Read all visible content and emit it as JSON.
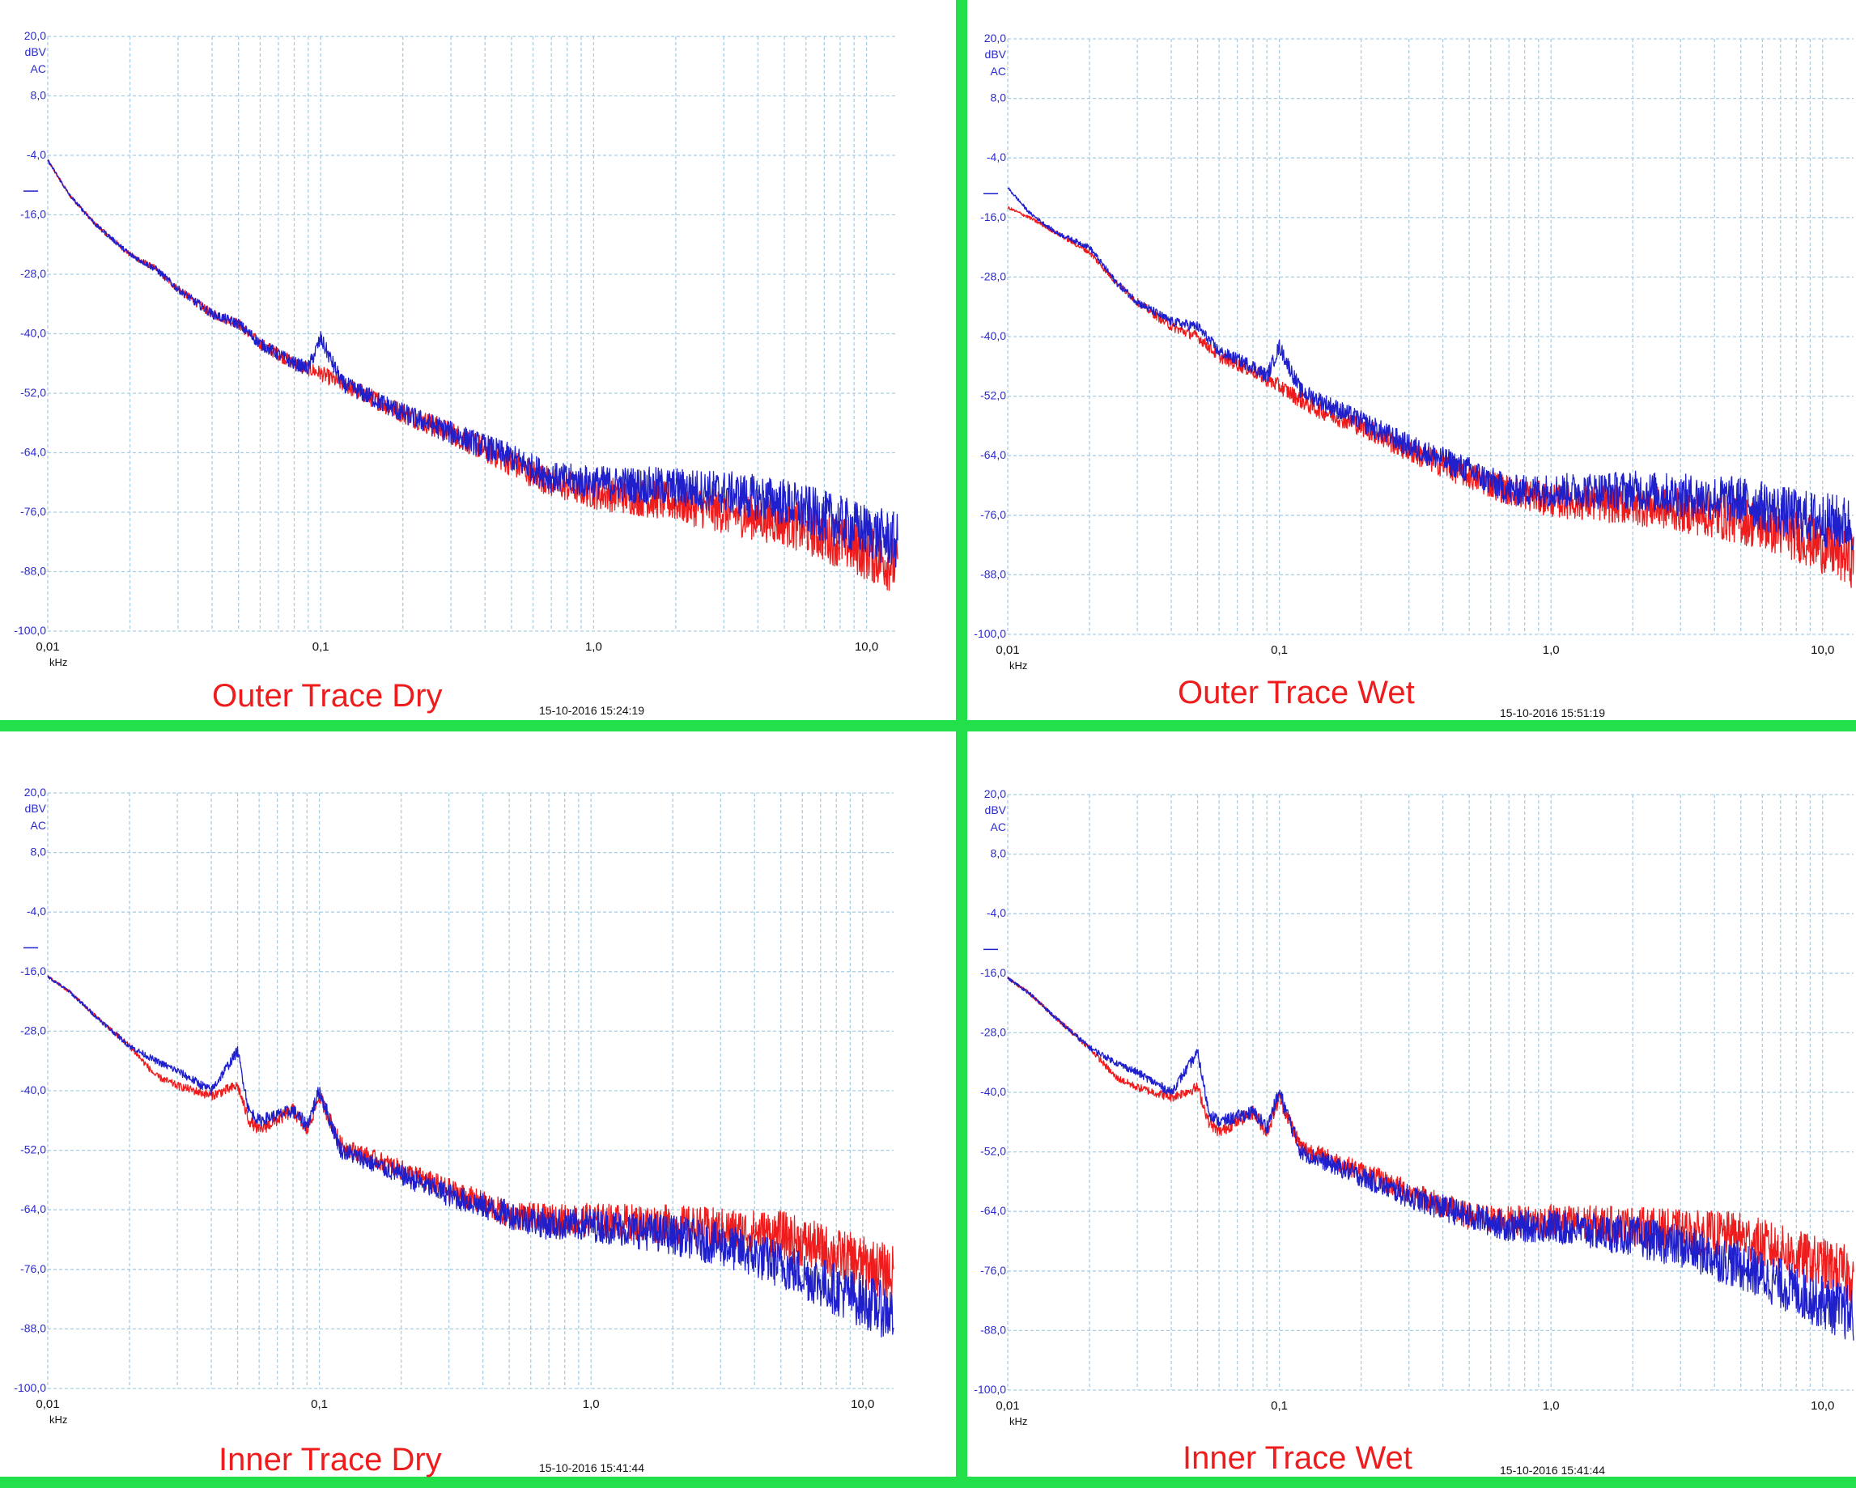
{
  "colors": {
    "divider": "#22e04a",
    "grid": "#a9cde3",
    "series_red": "#ee1c1c",
    "series_blue": "#1f1fcc",
    "axis_text": "#2a2ad0",
    "title": "#ee1c1c"
  },
  "chart_data": [
    {
      "type": "line",
      "title": "Outer Trace Dry",
      "timestamp": "15-10-2016 15:24:19",
      "y_unit_lines": [
        "dBV",
        "AC"
      ],
      "x_unit": "kHz",
      "xscale": "log",
      "xlim": [
        0.01,
        13
      ],
      "ylim": [
        -100,
        20
      ],
      "yticks": [
        "20,0",
        "8,0",
        "-4,0",
        "-16,0",
        "-28,0",
        "-40,0",
        "-52,0",
        "-64,0",
        "-76,0",
        "-88,0",
        "-100,0"
      ],
      "xticks": [
        "0,01",
        "0,1",
        "1,0",
        "10,0"
      ],
      "grid": true,
      "series": [
        {
          "color": "#ee1c1c",
          "x": [
            0.01,
            0.012,
            0.015,
            0.02,
            0.025,
            0.03,
            0.04,
            0.05,
            0.06,
            0.08,
            0.1,
            0.13,
            0.2,
            0.3,
            0.5,
            0.7,
            1.0,
            2.0,
            3.0,
            5.0,
            8.0,
            13.0
          ],
          "y": [
            -5,
            -12,
            -18,
            -24,
            -27,
            -31,
            -36,
            -38,
            -42,
            -46,
            -48,
            -51,
            -56,
            -60,
            -66,
            -70,
            -72,
            -74,
            -76,
            -78,
            -82,
            -87
          ]
        },
        {
          "color": "#1f1fcc",
          "x": [
            0.01,
            0.012,
            0.015,
            0.02,
            0.025,
            0.03,
            0.04,
            0.05,
            0.06,
            0.08,
            0.09,
            0.1,
            0.12,
            0.2,
            0.3,
            0.5,
            0.7,
            1.0,
            2.0,
            3.0,
            5.0,
            8.0,
            13.0
          ],
          "y": [
            -5,
            -12,
            -18,
            -24,
            -27,
            -31,
            -36,
            -38,
            -42,
            -46,
            -47,
            -41,
            -50,
            -56,
            -60,
            -65,
            -69,
            -70,
            -71,
            -72,
            -74,
            -78,
            -82
          ]
        }
      ]
    },
    {
      "type": "line",
      "title": "Outer Trace Wet",
      "timestamp": "15-10-2016 15:51:19",
      "y_unit_lines": [
        "dBV",
        "AC"
      ],
      "x_unit": "kHz",
      "xscale": "log",
      "xlim": [
        0.01,
        13
      ],
      "ylim": [
        -100,
        20
      ],
      "yticks": [
        "20,0",
        "8,0",
        "-4,0",
        "-16,0",
        "-28,0",
        "-40,0",
        "-52,0",
        "-64,0",
        "-76,0",
        "-88,0",
        "-100,0"
      ],
      "xticks": [
        "0,01",
        "0,1",
        "1,0",
        "10,0"
      ],
      "grid": true,
      "series": [
        {
          "color": "#ee1c1c",
          "x": [
            0.01,
            0.012,
            0.015,
            0.02,
            0.025,
            0.03,
            0.04,
            0.05,
            0.06,
            0.08,
            0.1,
            0.13,
            0.2,
            0.3,
            0.5,
            0.7,
            1.0,
            2.0,
            3.0,
            5.0,
            8.0,
            13.0
          ],
          "y": [
            -14,
            -16,
            -19,
            -23,
            -29,
            -33,
            -38,
            -40,
            -44,
            -47,
            -50,
            -54,
            -58,
            -63,
            -68,
            -71,
            -73,
            -74,
            -75,
            -77,
            -80,
            -85
          ]
        },
        {
          "color": "#1f1fcc",
          "x": [
            0.01,
            0.012,
            0.015,
            0.02,
            0.025,
            0.03,
            0.04,
            0.05,
            0.06,
            0.08,
            0.09,
            0.1,
            0.12,
            0.2,
            0.3,
            0.5,
            0.7,
            1.0,
            2.0,
            3.0,
            5.0,
            8.0,
            13.0
          ],
          "y": [
            -10,
            -15,
            -19,
            -22,
            -29,
            -33,
            -37,
            -38,
            -43,
            -46,
            -48,
            -42,
            -51,
            -57,
            -62,
            -67,
            -71,
            -71,
            -71,
            -72,
            -73,
            -76,
            -78
          ]
        }
      ]
    },
    {
      "type": "line",
      "title": "Inner Trace Dry",
      "timestamp": "15-10-2016 15:41:44",
      "y_unit_lines": [
        "dBV",
        "AC"
      ],
      "x_unit": "kHz",
      "xscale": "log",
      "xlim": [
        0.01,
        13
      ],
      "ylim": [
        -100,
        20
      ],
      "yticks": [
        "20,0",
        "8,0",
        "-4,0",
        "-16,0",
        "-28,0",
        "-40,0",
        "-52,0",
        "-64,0",
        "-76,0",
        "-88,0",
        "-100,0"
      ],
      "xticks": [
        "0,01",
        "0,1",
        "1,0",
        "10,0"
      ],
      "grid": true,
      "series": [
        {
          "color": "#ee1c1c",
          "x": [
            0.01,
            0.012,
            0.015,
            0.02,
            0.025,
            0.03,
            0.04,
            0.05,
            0.055,
            0.06,
            0.08,
            0.09,
            0.1,
            0.12,
            0.2,
            0.3,
            0.5,
            0.7,
            1.0,
            2.0,
            3.0,
            5.0,
            8.0,
            13.0
          ],
          "y": [
            -17,
            -20,
            -25,
            -31,
            -37,
            -39,
            -41,
            -39,
            -46,
            -48,
            -44,
            -48,
            -41,
            -51,
            -56,
            -60,
            -65,
            -66,
            -66,
            -67,
            -68,
            -69,
            -73,
            -77
          ]
        },
        {
          "color": "#1f1fcc",
          "x": [
            0.01,
            0.012,
            0.015,
            0.02,
            0.025,
            0.03,
            0.04,
            0.05,
            0.055,
            0.06,
            0.08,
            0.09,
            0.1,
            0.12,
            0.2,
            0.3,
            0.5,
            0.7,
            1.0,
            2.0,
            3.0,
            5.0,
            8.0,
            13.0
          ],
          "y": [
            -17,
            -20,
            -25,
            -31,
            -34,
            -36,
            -40,
            -32,
            -44,
            -46,
            -44,
            -47,
            -40,
            -52,
            -57,
            -61,
            -65,
            -67,
            -67,
            -69,
            -71,
            -75,
            -80,
            -85
          ]
        }
      ]
    },
    {
      "type": "line",
      "title": "Inner Trace Wet",
      "timestamp": "15-10-2016 15:41:44",
      "y_unit_lines": [
        "dBV",
        "AC"
      ],
      "x_unit": "kHz",
      "xscale": "log",
      "xlim": [
        0.01,
        13
      ],
      "ylim": [
        -100,
        20
      ],
      "yticks": [
        "20,0",
        "8,0",
        "-4,0",
        "-16,0",
        "-28,0",
        "-40,0",
        "-52,0",
        "-64,0",
        "-76,0",
        "-88,0",
        "-100,0"
      ],
      "xticks": [
        "0,01",
        "0,1",
        "1,0",
        "10,0"
      ],
      "grid": true,
      "series": [
        {
          "color": "#ee1c1c",
          "x": [
            0.01,
            0.012,
            0.015,
            0.02,
            0.025,
            0.03,
            0.04,
            0.05,
            0.055,
            0.06,
            0.08,
            0.09,
            0.1,
            0.12,
            0.2,
            0.3,
            0.5,
            0.7,
            1.0,
            2.0,
            3.0,
            5.0,
            8.0,
            13.0
          ],
          "y": [
            -17,
            -20,
            -25,
            -31,
            -37,
            -39,
            -41,
            -39,
            -46,
            -48,
            -44,
            -48,
            -41,
            -51,
            -56,
            -60,
            -65,
            -66,
            -66,
            -67,
            -68,
            -69,
            -73,
            -77
          ]
        },
        {
          "color": "#1f1fcc",
          "x": [
            0.01,
            0.012,
            0.015,
            0.02,
            0.025,
            0.03,
            0.04,
            0.05,
            0.055,
            0.06,
            0.08,
            0.09,
            0.1,
            0.12,
            0.2,
            0.3,
            0.5,
            0.7,
            1.0,
            2.0,
            3.0,
            5.0,
            8.0,
            13.0
          ],
          "y": [
            -17,
            -20,
            -25,
            -31,
            -34,
            -36,
            -40,
            -32,
            -44,
            -46,
            -44,
            -47,
            -40,
            -52,
            -57,
            -61,
            -65,
            -67,
            -67,
            -69,
            -71,
            -75,
            -80,
            -85
          ]
        }
      ]
    }
  ]
}
